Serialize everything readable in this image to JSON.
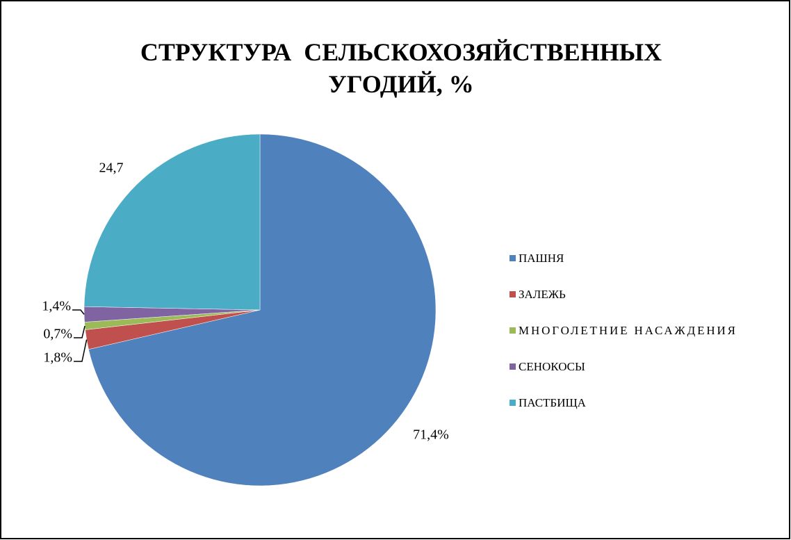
{
  "chart_data": {
    "type": "pie",
    "title": "СТРУКТУРА  СЕЛЬСКОХОЗЯЙСТВЕННЫХ\nУГОДИЙ, %",
    "categories": [
      "ПАШНЯ",
      "ЗАЛЕЖЬ",
      "МНОГОЛЕТНИЕ НАСАЖДЕНИЯ",
      "СЕНОКОСЫ",
      "ПАСТБИЩА"
    ],
    "values": [
      71.4,
      1.8,
      0.7,
      1.4,
      24.7
    ],
    "value_labels": [
      "71,4%",
      "1,8%",
      "0,7%",
      "1,4%",
      "24,7"
    ],
    "colors": [
      "#4f81bd",
      "#c0504d",
      "#9bbb59",
      "#8064a2",
      "#4bacc6"
    ],
    "legend": "right"
  }
}
